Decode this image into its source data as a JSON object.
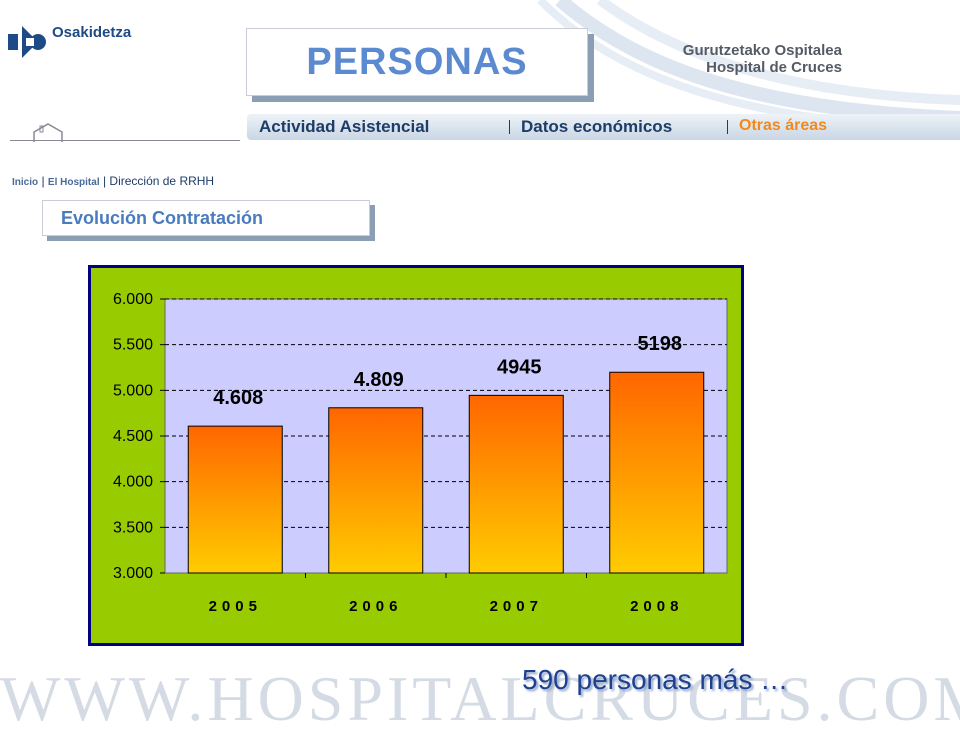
{
  "header": {
    "logo_text": "Osakidetza",
    "hospital_line1": "Gurutzetako Ospitalea",
    "hospital_line2": "Hospital de Cruces",
    "title": "PERSONAS"
  },
  "nav": {
    "items": [
      {
        "label": "Actividad Asistencial"
      },
      {
        "label": "Datos económicos"
      },
      {
        "label": "Otras áreas"
      }
    ],
    "accent_color": "#f08a1c"
  },
  "breadcrumb": {
    "home": "Inicio",
    "hospital": "El Hospital",
    "current": "Dirección de RRHH"
  },
  "subtitle": "Evolución Contratación",
  "chart_data": {
    "type": "bar",
    "categories": [
      "2005",
      "2006",
      "2007",
      "2008"
    ],
    "values": [
      4608,
      4809,
      4945,
      5198
    ],
    "data_labels": [
      "4.608",
      "4.809",
      "4945",
      "5198"
    ],
    "ylim": [
      3000,
      6000
    ],
    "yticks": [
      3000,
      3500,
      4000,
      4500,
      5000,
      5500,
      6000
    ],
    "ytick_labels": [
      "3.000",
      "3.500",
      "4.000",
      "4.500",
      "5.000",
      "5.500",
      "6.000"
    ],
    "grid": true,
    "title": "",
    "xlabel": "",
    "ylabel": "",
    "colors": {
      "background": "#99cc00",
      "plot_area": "#ccccff",
      "bar_top": "#ff6600",
      "bar_bottom": "#ffcc00",
      "border": "#000080"
    }
  },
  "footer_text": "590 personas más …",
  "watermark": "WWW.HOSPITALCRUCES.COM"
}
